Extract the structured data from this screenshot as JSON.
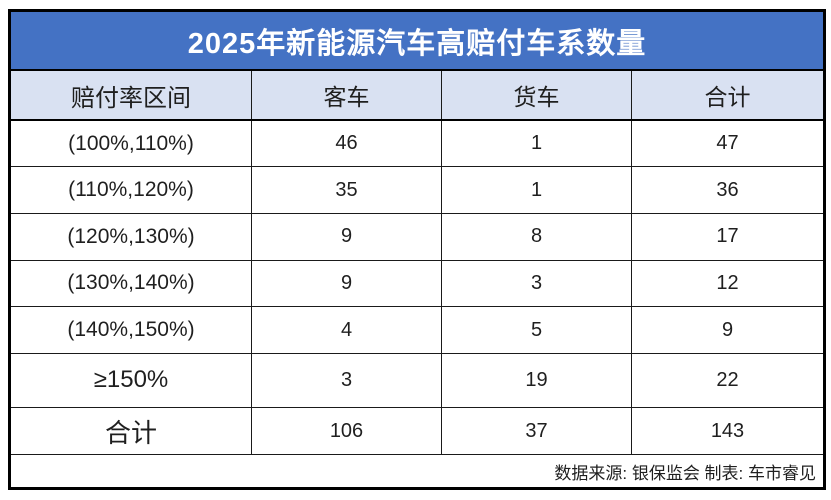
{
  "title": "2025年新能源汽车高赔付车系数量",
  "table": {
    "columns": [
      "赔付率区间",
      "客车",
      "货车",
      "合计"
    ],
    "rows": [
      [
        "(100%,110%)",
        "46",
        "1",
        "47"
      ],
      [
        "(110%,120%)",
        "35",
        "1",
        "36"
      ],
      [
        "(120%,130%)",
        "9",
        "8",
        "17"
      ],
      [
        "(130%,140%)",
        "9",
        "3",
        "12"
      ],
      [
        "(140%,150%)",
        "4",
        "5",
        "9"
      ],
      [
        "≥150%",
        "3",
        "19",
        "22"
      ],
      [
        "合计",
        "106",
        "37",
        "143"
      ]
    ]
  },
  "footer": {
    "text": "数据来源: 银保监会 制表: 车市睿见"
  },
  "colors": {
    "title_bg": "#4472C4",
    "title_text": "#FFFFFF",
    "header_bg": "#D9E1F2",
    "grid_line": "#000000",
    "cell_bg": "#FFFFFF"
  },
  "chart_data": {
    "type": "table",
    "title": "2025年新能源汽车高赔付车系数量",
    "row_label_header": "赔付率区间",
    "categories": [
      "(100%,110%)",
      "(110%,120%)",
      "(120%,130%)",
      "(130%,140%)",
      "(140%,150%)",
      "≥150%"
    ],
    "series": [
      {
        "name": "客车",
        "values": [
          46,
          35,
          9,
          9,
          4,
          3
        ],
        "total": 106
      },
      {
        "name": "货车",
        "values": [
          1,
          1,
          8,
          3,
          5,
          19
        ],
        "total": 37
      },
      {
        "name": "合计",
        "values": [
          47,
          36,
          17,
          12,
          9,
          22
        ],
        "total": 143
      }
    ],
    "total_row_label": "合计",
    "source_note": "数据来源: 银保监会 制表: 车市睿见"
  }
}
